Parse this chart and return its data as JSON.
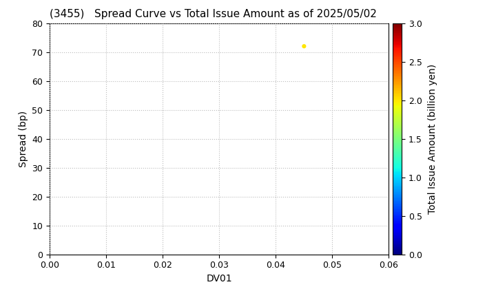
{
  "title": "(3455)   Spread Curve vs Total Issue Amount as of 2025/05/02",
  "xlabel": "DV01",
  "ylabel": "Spread (bp)",
  "colorbar_label": "Total Issue Amount (billion yen)",
  "xlim": [
    0.0,
    0.06
  ],
  "ylim": [
    0,
    80
  ],
  "xticks": [
    0.0,
    0.01,
    0.02,
    0.03,
    0.04,
    0.05,
    0.06
  ],
  "yticks": [
    0,
    10,
    20,
    30,
    40,
    50,
    60,
    70,
    80
  ],
  "colorbar_min": 0.0,
  "colorbar_max": 3.0,
  "colorbar_ticks": [
    0.0,
    0.5,
    1.0,
    1.5,
    2.0,
    2.5,
    3.0
  ],
  "scatter_x": [
    0.045
  ],
  "scatter_y": [
    72
  ],
  "scatter_color_value": [
    2.0
  ],
  "scatter_marker": "o",
  "scatter_size": 20,
  "grid_color": "#bbbbbb",
  "grid_style": "dotted",
  "background_color": "#ffffff",
  "title_fontsize": 11,
  "axis_fontsize": 10,
  "tick_fontsize": 9,
  "colorbar_fontsize": 10
}
